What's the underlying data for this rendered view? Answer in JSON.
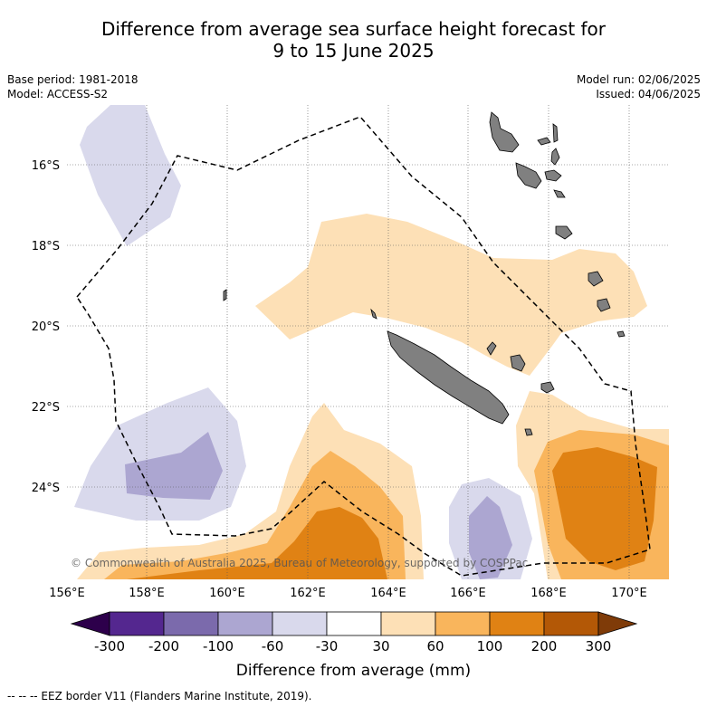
{
  "title": {
    "line1": "Difference from average sea surface height forecast for",
    "line2": "9 to 15 June 2025"
  },
  "meta": {
    "base_period": "Base period: 1981-2018",
    "model": "Model: ACCESS-S2",
    "model_run": "Model run: 02/06/2025",
    "issued": "Issued: 04/06/2025"
  },
  "axes": {
    "lat_labels": [
      "16°S",
      "18°S",
      "20°S",
      "22°S",
      "24°S"
    ],
    "lon_labels": [
      "156°E",
      "158°E",
      "160°E",
      "162°E",
      "164°E",
      "166°E",
      "168°E",
      "170°E"
    ]
  },
  "copyright": "© Commonwealth of Australia 2025, Bureau of Meteorology, supported by COSPPac",
  "colorbar": {
    "title": "Difference from average (mm)",
    "ticks": [
      "-300",
      "-200",
      "-100",
      "-60",
      "-30",
      "30",
      "60",
      "100",
      "200",
      "300"
    ],
    "colors": [
      "#54278f",
      "#54278f",
      "#7b6aac",
      "#aca6d1",
      "#d9d9ec",
      "#ffffff",
      "#fde0b6",
      "#f9b55c",
      "#e08214",
      "#b35806",
      "#7f3b08"
    ]
  },
  "footer": "-- -- -- EEZ border V11 (Flanders Marine Institute, 2019)."
}
